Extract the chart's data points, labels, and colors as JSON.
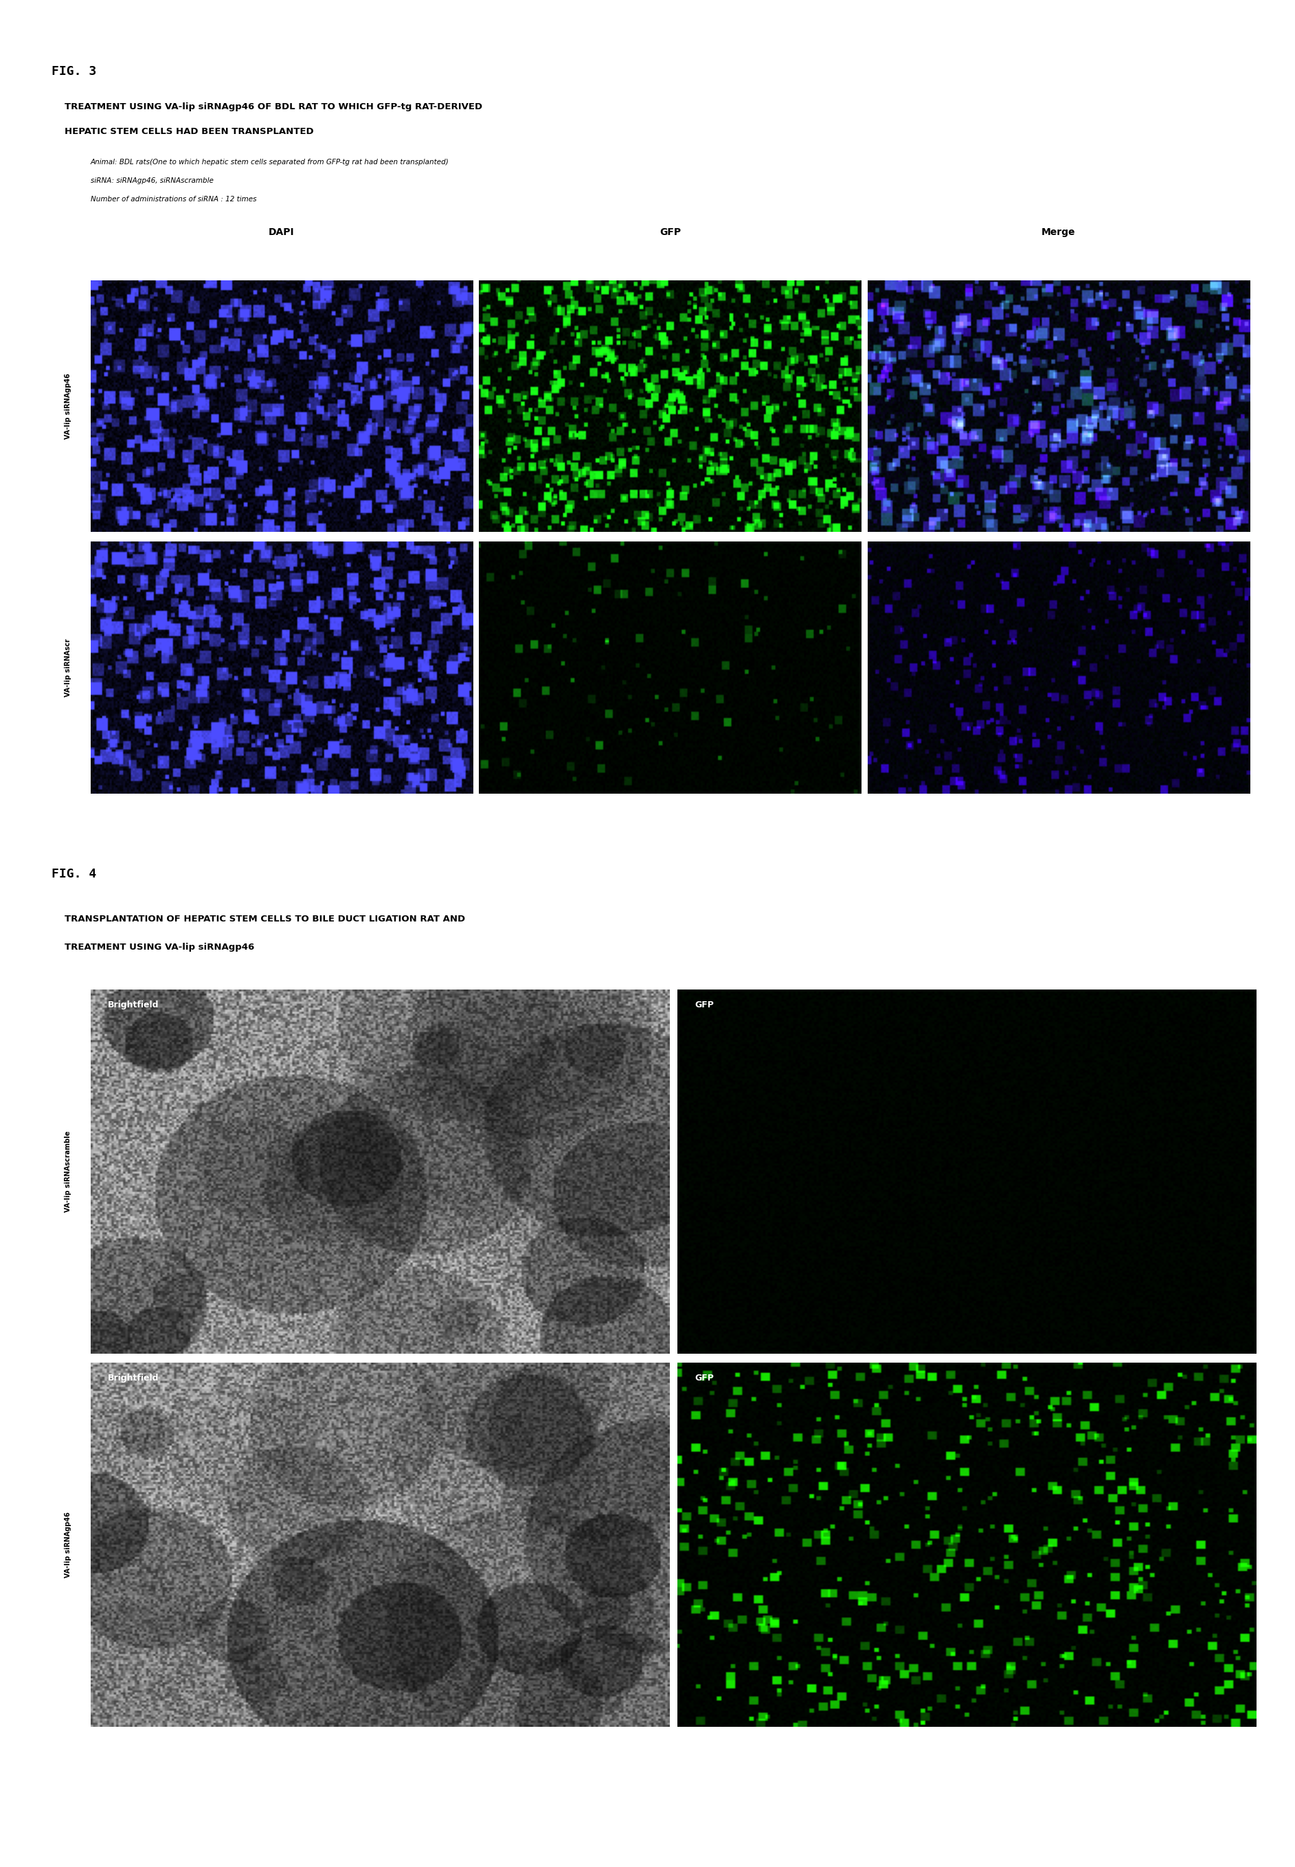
{
  "fig3_label": "FIG. 3",
  "fig3_title_line1": "TREATMENT USING VA-lip siRNAgp46 OF BDL RAT TO WHICH GFP-tg RAT-DERIVED",
  "fig3_title_line2": "HEPATIC STEM CELLS HAD BEEN TRANSPLANTED",
  "fig3_sub1": "Animal: BDL rats(One to which hepatic stem cells separated from GFP-tg rat had been transplanted)",
  "fig3_sub2": "siRNA: siRNAgp46, siRNAscramble",
  "fig3_sub3": "Number of administrations of siRNA : 12 times",
  "fig3_col_labels": [
    "DAPI",
    "GFP",
    "Merge"
  ],
  "fig3_row1_label": "VA-lip siRNAgp46",
  "fig3_row2_label": "VA-lip siRNAscr",
  "fig4_label": "FIG. 4",
  "fig4_title_line1": "TRANSPLANTATION OF HEPATIC STEM CELLS TO BILE DUCT LIGATION RAT AND",
  "fig4_title_line2": "TREATMENT USING VA-lip siRNAgp46",
  "fig4_row1_label": "VA-lip siRNAscramble",
  "fig4_row2_label": "VA-lip siRNAgp46",
  "fig4_col1_label": "Brightfield",
  "fig4_col2_label": "GFP",
  "background_color": "#ffffff",
  "text_color": "#000000",
  "image_border_color": "#000000"
}
